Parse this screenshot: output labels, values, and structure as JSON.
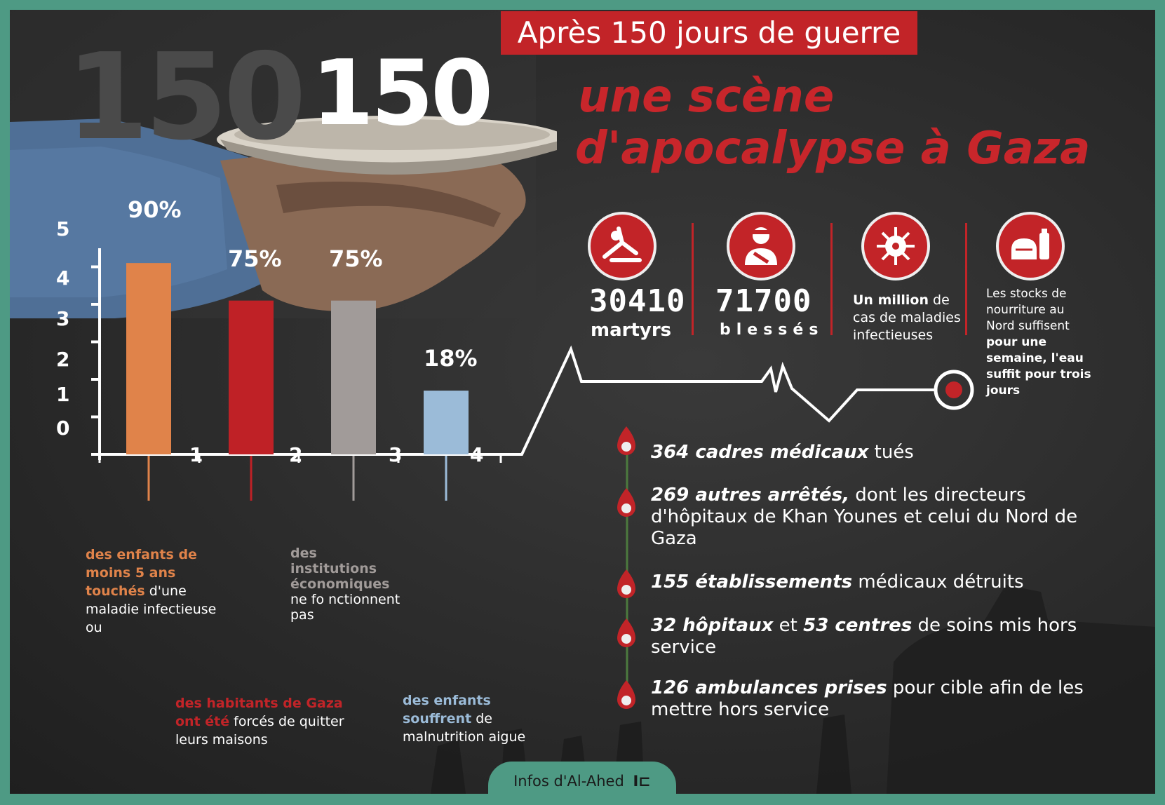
{
  "header": {
    "headline": "Après 150 jours de guerre",
    "big_number": "150",
    "background_number": "150",
    "subtitle_line1": "une scène",
    "subtitle_line2": "d'apocalypse à Gaza"
  },
  "colors": {
    "red": "#c22428",
    "orange": "#e0834a",
    "gray": "#a09a98",
    "blue": "#9bbbd8",
    "teal_border": "#4e9a84"
  },
  "chart_data": {
    "type": "bar",
    "y_ticks": [
      "0",
      "1",
      "2",
      "3",
      "4",
      "5"
    ],
    "x_ticks": [
      "1",
      "2",
      "3",
      "4"
    ],
    "ylim": [
      0,
      5
    ],
    "bars": [
      {
        "label": "90%",
        "value": 5.1,
        "color": "#e0834a"
      },
      {
        "label": "75%",
        "value": 4.1,
        "color": "#bf2126"
      },
      {
        "label": "75%",
        "value": 4.1,
        "color": "#a19b99"
      },
      {
        "label": "18%",
        "value": 1.7,
        "color": "#9bbbd8"
      }
    ]
  },
  "captions": {
    "c1_bold": "des enfants de moins 5 ans touchés",
    "c1_rest": " d'une maladie infectieuse ou",
    "c2_bold": "des habitants de Gaza ont été",
    "c2_rest": " forcés de quitter leurs maisons",
    "c3_bold": "des institutions économiques",
    "c3_rest": " ne fo nctionnent pas",
    "c4_bold": "des enfants souffrent",
    "c4_rest": " de malnutrition aigue"
  },
  "stats": {
    "martyrs_num": "30410",
    "martyrs_lbl": "martyrs",
    "wounded_num": "71700",
    "wounded_lbl": "blessés",
    "disease_bold": "Un million",
    "disease_rest": " de cas de maladies infectieuses",
    "food_rest": "Les stocks de nourriture au Nord suffisent ",
    "food_bold": "pour une semaine, l'eau suffit pour trois jours",
    "icons": [
      "injured-person-icon",
      "bandaged-person-icon",
      "virus-icon",
      "food-icon"
    ]
  },
  "list": [
    {
      "bold": "364 cadres médicaux",
      "rest": " tués"
    },
    {
      "bold": "269 autres arrêtés,",
      "rest": " dont les directeurs d'hôpitaux de Khan Younes et celui du Nord de Gaza"
    },
    {
      "bold": "155 établissements",
      "rest": " médicaux détruits"
    },
    {
      "bold": "32 hôpitaux",
      "mid": " et ",
      "bold2": "53 centres",
      "rest": " de soins mis hors service"
    },
    {
      "bold": "126 ambulances prises",
      "rest": " pour cible afin de les mettre hors service"
    }
  ],
  "footer": {
    "source": "Infos d'Al-Ahed"
  }
}
